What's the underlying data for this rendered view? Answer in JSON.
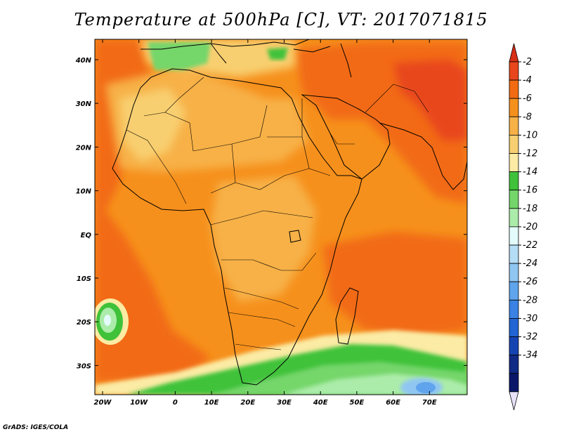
{
  "title": "Temperature at 500hPa [C], VT: 2017071815",
  "credit": "GrADS: IGES/COLA",
  "lat_labels": [
    "40N",
    "30N",
    "20N",
    "10N",
    "EQ",
    "10S",
    "20S",
    "30S"
  ],
  "lon_labels": [
    "20W",
    "10W",
    "0",
    "10E",
    "20E",
    "30E",
    "40E",
    "50E",
    "60E",
    "70E"
  ],
  "colorbar": {
    "labels": [
      "-2",
      "-4",
      "-6",
      "-8",
      "-10",
      "-12",
      "-14",
      "-16",
      "-18",
      "-20",
      "-22",
      "-24",
      "-26",
      "-28",
      "-30",
      "-32",
      "-34"
    ],
    "colors": [
      "#e8461c",
      "#f26b12",
      "#f6901c",
      "#f7b147",
      "#f8cf70",
      "#fbeba4",
      "#3fc23a",
      "#74d66a",
      "#acecaa",
      "#e3fbfb",
      "#b5ddf6",
      "#8fc6f2",
      "#5fa4ec",
      "#3a82e4",
      "#2164d3",
      "#1544b2",
      "#102a85",
      "#0b186a"
    ],
    "top_color": "#d82e16",
    "bottom_color": "#e8e2f8"
  },
  "colors": {
    "background_field": "#f6901c",
    "ocean_west": "#f26b12",
    "coast_line": "#000000"
  }
}
